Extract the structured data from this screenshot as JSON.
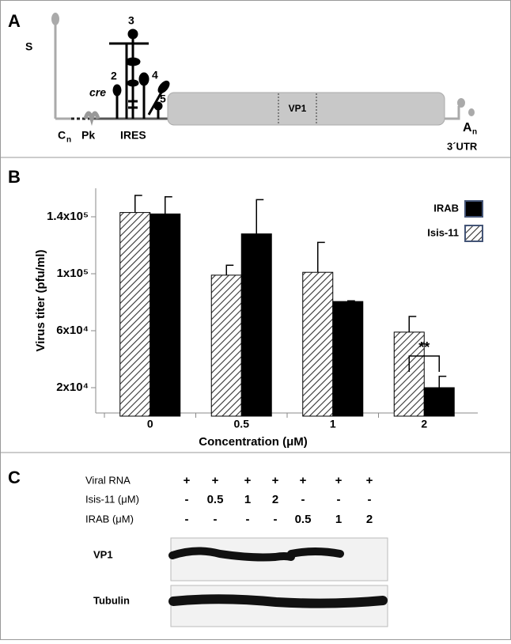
{
  "panel_a": {
    "letter": "A",
    "labels": {
      "s": "S",
      "domain3": "3",
      "cre": "cre",
      "domain2": "2",
      "domain4": "4",
      "domain5": "5",
      "vp1": "VP1",
      "c": "C",
      "c_sub": "n",
      "pk": "Pk",
      "ires": "IRES",
      "a": "A",
      "a_sub": "n",
      "utr": "3´UTR"
    }
  },
  "chart_data": {
    "type": "bar",
    "letter": "B",
    "x_label": "Concentration (μM)",
    "y_label": "Virus titer (pfu/ml)",
    "categories": [
      "0",
      "0.5",
      "1",
      "2"
    ],
    "series": [
      {
        "name": "Isis-11",
        "color": "hatch",
        "values": [
          143000,
          99000,
          101000,
          59000
        ],
        "errors": [
          12000,
          7000,
          21000,
          11000
        ]
      },
      {
        "name": "IRAB",
        "color": "#000000",
        "values": [
          142000,
          128000,
          80500,
          20000
        ],
        "errors": [
          12000,
          24000,
          500,
          8000
        ]
      }
    ],
    "ylim": [
      0,
      160000
    ],
    "yticks": [
      {
        "value": 20000,
        "label": "2x10⁴"
      },
      {
        "value": 60000,
        "label": "6x10⁴"
      },
      {
        "value": 100000,
        "label": "1x10⁵"
      },
      {
        "value": 140000,
        "label": "1.4x10⁵"
      }
    ],
    "annotation": "**",
    "legend": "upper right"
  },
  "panel_c": {
    "letter": "C",
    "rows": [
      {
        "label": "Viral RNA",
        "cells": [
          "+",
          "+",
          "+",
          "+",
          "+",
          "+",
          "+"
        ]
      },
      {
        "label": "Isis-11 (μM)",
        "cells": [
          "-",
          "0.5",
          "1",
          "2",
          "-",
          "-",
          "-"
        ]
      },
      {
        "label": "IRAB (μM)",
        "cells": [
          "-",
          "-",
          "-",
          "-",
          "0.5",
          "1",
          "2"
        ]
      }
    ],
    "blots": [
      "VP1",
      "Tubulin"
    ]
  }
}
